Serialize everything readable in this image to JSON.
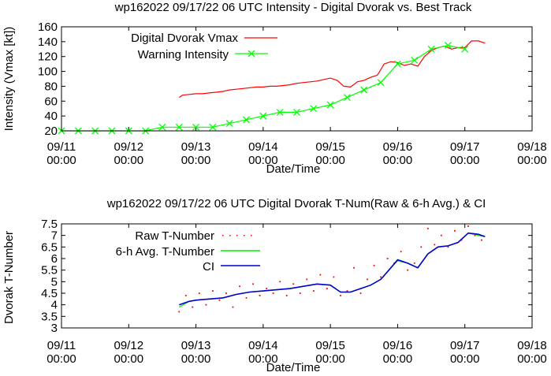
{
  "chart_data": [
    {
      "type": "line",
      "title": "wp162022 09/17/22  06 UTC Intensity - Digital Dvorak vs. Best Track",
      "xlabel": "Date/Time",
      "ylabel": "Intensity (Vmax [kt])",
      "x_ticks": [
        "09/11\n00:00",
        "09/12\n00:00",
        "09/13\n00:00",
        "09/14\n00:00",
        "09/15\n00:00",
        "09/16\n00:00",
        "09/17\n00:00",
        "09/18\n00:00"
      ],
      "y_ticks": [
        "20",
        "40",
        "60",
        "80",
        "100",
        "120",
        "140",
        "160"
      ],
      "xlim": [
        0,
        7
      ],
      "ylim": [
        20,
        160
      ],
      "legend": "top-left",
      "series": [
        {
          "name": "Digital Dvorak Vmax",
          "color": "#ff0000",
          "style": "line",
          "x": [
            1.75,
            1.8,
            1.9,
            2.0,
            2.1,
            2.2,
            2.3,
            2.4,
            2.5,
            2.6,
            2.7,
            2.8,
            2.9,
            3.0,
            3.1,
            3.2,
            3.3,
            3.4,
            3.5,
            3.6,
            3.7,
            3.8,
            3.9,
            4.0,
            4.1,
            4.2,
            4.3,
            4.4,
            4.5,
            4.6,
            4.7,
            4.8,
            4.9,
            5.0,
            5.1,
            5.2,
            5.3,
            5.4,
            5.5,
            5.6,
            5.7,
            5.8,
            5.9,
            6.0,
            6.1,
            6.2,
            6.3
          ],
          "y": [
            65,
            68,
            69,
            70,
            70,
            71,
            72,
            73,
            75,
            76,
            77,
            78,
            79,
            79,
            80,
            80,
            81,
            82,
            84,
            85,
            86,
            87,
            89,
            91,
            88,
            80,
            79,
            86,
            88,
            92,
            95,
            110,
            113,
            112,
            108,
            110,
            107,
            120,
            128,
            132,
            134,
            130,
            132,
            132,
            141,
            141,
            138
          ]
        },
        {
          "name": "Warning Intensity",
          "color": "#00ff00",
          "style": "line-x-markers",
          "x": [
            0,
            0.25,
            0.5,
            0.75,
            1.0,
            1.25,
            1.5,
            1.75,
            2.0,
            2.25,
            2.5,
            2.75,
            3.0,
            3.25,
            3.5,
            3.75,
            4.0,
            4.25,
            4.5,
            4.75,
            5.0,
            5.25,
            5.5,
            5.75,
            6.0
          ],
          "y": [
            20,
            20,
            20,
            20,
            20,
            20,
            25,
            25,
            25,
            25,
            30,
            35,
            40,
            45,
            45,
            50,
            55,
            65,
            75,
            85,
            110,
            115,
            130,
            135,
            130
          ]
        }
      ]
    },
    {
      "type": "line",
      "title": "wp162022 09/17/22  06 UTC Digital Dvorak T-Num(Raw & 6-h Avg.) & CI",
      "xlabel": "Date/Time",
      "ylabel": "Dvorak T-Number",
      "x_ticks": [
        "09/11\n00:00",
        "09/12\n00:00",
        "09/13\n00:00",
        "09/14\n00:00",
        "09/15\n00:00",
        "09/16\n00:00",
        "09/17\n00:00",
        "09/18\n00:00"
      ],
      "y_ticks": [
        "3",
        "3.5",
        "4",
        "4.5",
        "5",
        "5.5",
        "6",
        "6.5",
        "7",
        "7.5"
      ],
      "xlim": [
        0,
        7
      ],
      "ylim": [
        3,
        7.5
      ],
      "legend": "top-left",
      "series": [
        {
          "name": "Raw T-Number",
          "color": "#ff0000",
          "style": "dots",
          "x": [
            1.75,
            1.85,
            1.95,
            2.05,
            2.15,
            2.25,
            2.35,
            2.45,
            2.55,
            2.65,
            2.75,
            2.85,
            2.95,
            3.05,
            3.15,
            3.25,
            3.35,
            3.45,
            3.55,
            3.65,
            3.75,
            3.85,
            3.95,
            4.05,
            4.15,
            4.25,
            4.35,
            4.45,
            4.55,
            4.65,
            4.75,
            4.85,
            4.95,
            5.05,
            5.15,
            5.25,
            5.35,
            5.45,
            5.55,
            5.65,
            5.75,
            5.85,
            5.95,
            6.05,
            6.15,
            6.25
          ],
          "y": [
            3.7,
            4.4,
            3.9,
            4.5,
            4.0,
            4.6,
            4.2,
            4.5,
            3.9,
            4.8,
            4.3,
            4.9,
            4.4,
            4.7,
            4.5,
            5.0,
            4.4,
            4.9,
            4.5,
            5.1,
            4.6,
            5.3,
            4.7,
            5.2,
            4.4,
            4.6,
            5.6,
            4.5,
            5.1,
            5.7,
            5.2,
            6.0,
            5.8,
            6.3,
            5.5,
            5.8,
            6.5,
            7.3,
            6.6,
            7.0,
            6.5,
            7.2,
            6.8,
            7.4,
            7.0,
            6.8
          ]
        },
        {
          "name": "6-h Avg. T-Number",
          "color": "#00ee00",
          "style": "line",
          "x": [
            1.75,
            1.9,
            2.0,
            2.2,
            2.4,
            2.6,
            2.8,
            3.0,
            3.2,
            3.4,
            3.6,
            3.8,
            4.0,
            4.15,
            4.3,
            4.45,
            4.6,
            4.75,
            4.9,
            5.0,
            5.15,
            5.3,
            5.45,
            5.6,
            5.75,
            5.9,
            6.05,
            6.2,
            6.3
          ],
          "y": [
            3.9,
            4.15,
            4.2,
            4.25,
            4.3,
            4.45,
            4.55,
            4.6,
            4.65,
            4.7,
            4.8,
            4.9,
            4.85,
            4.55,
            4.55,
            4.7,
            4.85,
            5.1,
            5.6,
            5.9,
            5.8,
            5.6,
            6.2,
            6.5,
            6.55,
            6.7,
            7.1,
            7.0,
            6.95
          ]
        },
        {
          "name": "CI",
          "color": "#0000cc",
          "style": "line",
          "x": [
            1.75,
            1.9,
            2.0,
            2.2,
            2.4,
            2.6,
            2.8,
            3.0,
            3.2,
            3.4,
            3.6,
            3.8,
            4.0,
            4.15,
            4.3,
            4.45,
            4.6,
            4.75,
            4.9,
            5.0,
            5.15,
            5.3,
            5.45,
            5.6,
            5.75,
            5.9,
            6.05,
            6.2,
            6.3
          ],
          "y": [
            4.0,
            4.15,
            4.2,
            4.25,
            4.3,
            4.45,
            4.55,
            4.6,
            4.65,
            4.7,
            4.8,
            4.9,
            4.85,
            4.55,
            4.55,
            4.7,
            4.85,
            5.1,
            5.6,
            5.95,
            5.8,
            5.6,
            6.2,
            6.5,
            6.55,
            6.7,
            7.1,
            7.05,
            6.95
          ]
        }
      ]
    }
  ]
}
